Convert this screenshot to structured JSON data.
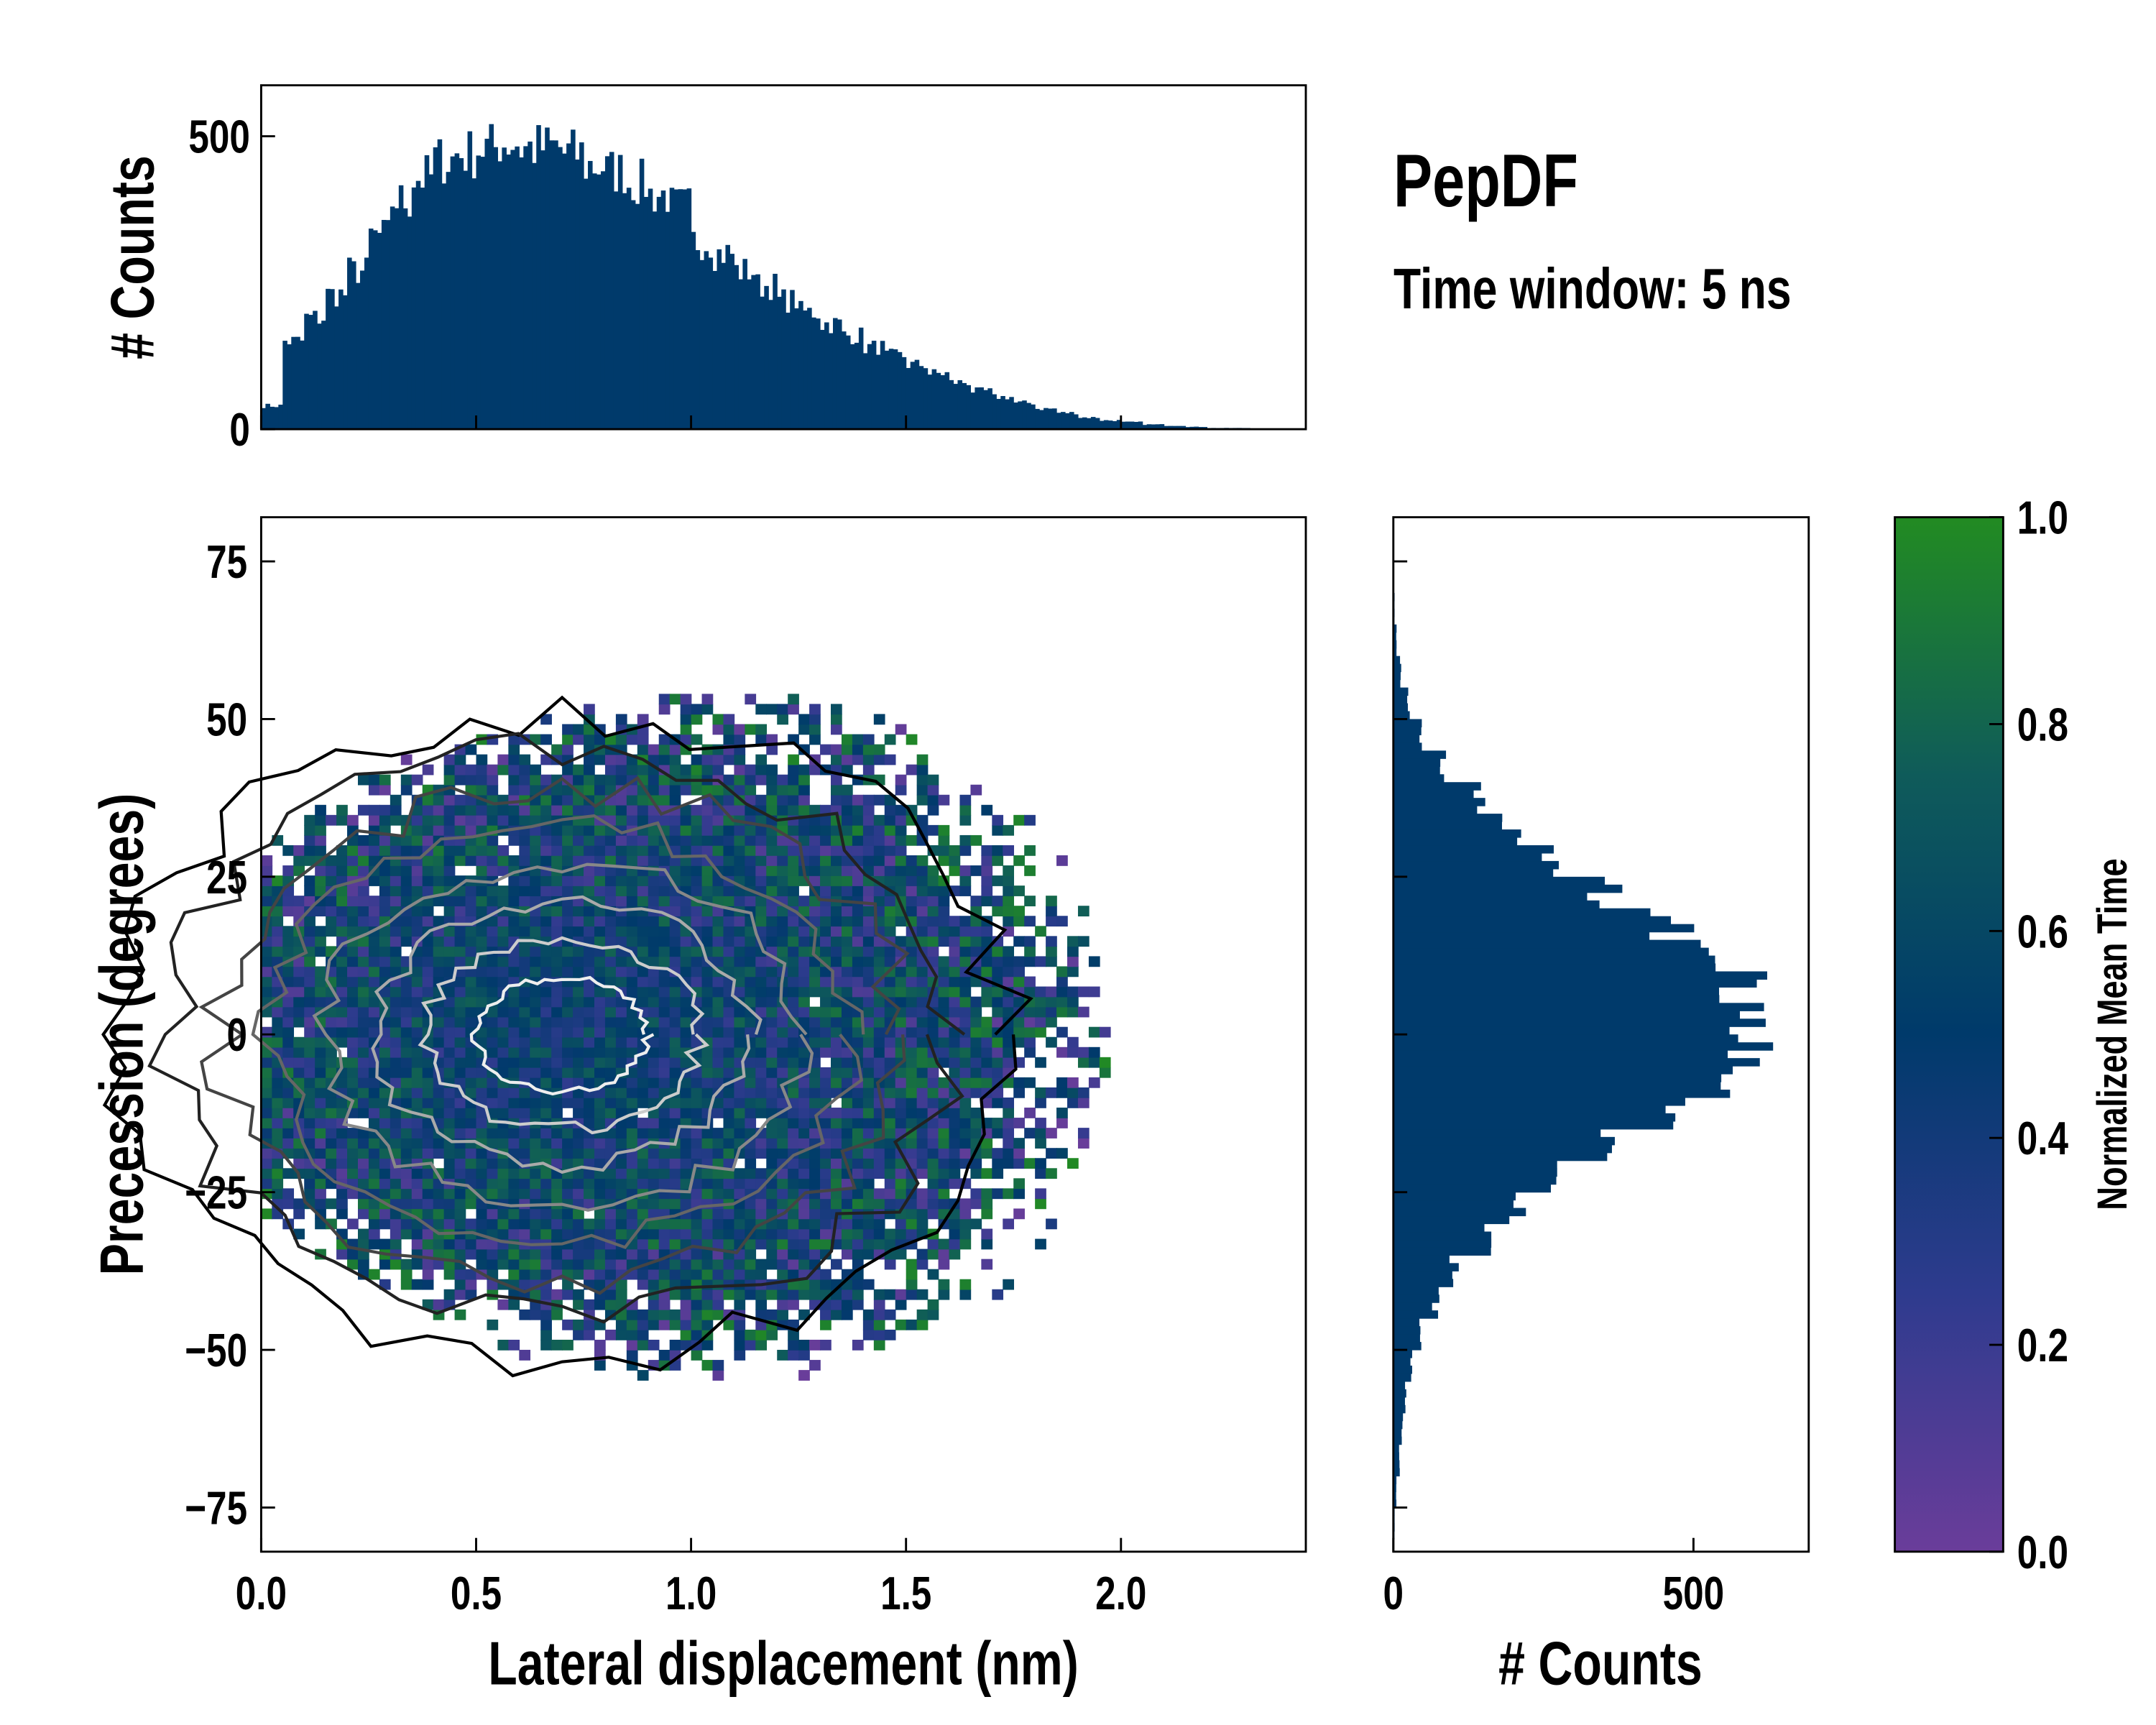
{
  "title": "PepDF",
  "subtitle": "Time window: 5 ns",
  "chart_data": [
    {
      "type": "bar",
      "name": "top-histogram",
      "ylabel": "# Counts",
      "xlim": [
        0,
        2.43
      ],
      "ylim": [
        0,
        587
      ],
      "yticks": [
        0,
        500
      ],
      "bin_width": 0.05,
      "bin_starts": [
        0,
        0.05,
        0.1,
        0.15,
        0.2,
        0.25,
        0.3,
        0.35,
        0.4,
        0.45,
        0.5,
        0.55,
        0.6,
        0.65,
        0.7,
        0.75,
        0.8,
        0.85,
        0.9,
        0.95,
        1.0,
        1.05,
        1.1,
        1.15,
        1.2,
        1.25,
        1.3,
        1.35,
        1.4,
        1.45,
        1.5,
        1.55,
        1.6,
        1.65,
        1.7,
        1.75,
        1.8,
        1.85,
        1.9,
        1.95,
        2.0,
        2.05,
        2.1,
        2.15,
        2.2,
        2.25,
        2.3,
        2.35
      ],
      "values": [
        40,
        150,
        190,
        230,
        270,
        330,
        390,
        430,
        460,
        470,
        480,
        490,
        480,
        480,
        470,
        450,
        440,
        420,
        400,
        380,
        320,
        300,
        270,
        245,
        220,
        200,
        180,
        160,
        140,
        125,
        110,
        95,
        80,
        65,
        55,
        45,
        35,
        28,
        20,
        15,
        12,
        8,
        6,
        4,
        2,
        2,
        1,
        1
      ],
      "color": "#003a6b"
    },
    {
      "type": "heatmap",
      "name": "main-2d-histogram",
      "xlabel": "Lateral displacement (nm)",
      "ylabel": "Precession (degrees)",
      "xlim": [
        0,
        2.43
      ],
      "ylim": [
        -82,
        82
      ],
      "xticks": [
        "0.0",
        "0.5",
        "1.0",
        "1.5",
        "2.0"
      ],
      "xtick_values": [
        0,
        0.5,
        1.0,
        1.5,
        2.0
      ],
      "yticks": [
        "75",
        "50",
        "25",
        "0",
        "−25",
        "−50",
        "−75"
      ],
      "ytick_values": [
        75,
        50,
        25,
        0,
        -25,
        -50,
        -75
      ],
      "density_center": [
        0.65,
        0
      ],
      "contour_colors": [
        "#000000",
        "#222222",
        "#444444",
        "#666666",
        "#888888",
        "#aaaaaa",
        "#cccccc",
        "#eeeeee"
      ]
    },
    {
      "type": "bar",
      "name": "right-histogram",
      "orientation": "horizontal",
      "xlabel": "# Counts",
      "xlim": [
        0,
        692
      ],
      "xticks": [
        0,
        500
      ],
      "bin_width": 5,
      "bin_starts": [
        -80,
        -75,
        -70,
        -65,
        -60,
        -55,
        -50,
        -45,
        -40,
        -35,
        -30,
        -25,
        -20,
        -15,
        -10,
        -5,
        0,
        5,
        10,
        15,
        20,
        25,
        30,
        35,
        40,
        45,
        50,
        55,
        60,
        65,
        70,
        75
      ],
      "values": [
        2,
        5,
        10,
        15,
        20,
        30,
        45,
        70,
        100,
        150,
        210,
        280,
        360,
        450,
        540,
        600,
        610,
        580,
        520,
        460,
        350,
        260,
        200,
        140,
        80,
        45,
        25,
        12,
        5,
        2,
        0,
        0
      ],
      "color": "#003a6b"
    },
    {
      "type": "colorbar",
      "name": "colorbar",
      "label": "Normalized Mean Time",
      "range": [
        0,
        1
      ],
      "ticks": [
        "0.0",
        "0.2",
        "0.4",
        "0.6",
        "0.8",
        "1.0"
      ],
      "tick_values": [
        0,
        0.2,
        0.4,
        0.6,
        0.8,
        1.0
      ],
      "colormap": [
        "#6a3d9a",
        "#2e3b8e",
        "#003a6b",
        "#0f5b5a",
        "#228b22"
      ]
    }
  ]
}
